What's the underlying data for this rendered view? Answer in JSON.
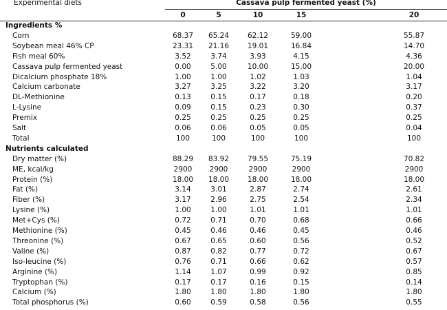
{
  "header": {
    "label": "Experimental diets",
    "group": "Cassava pulp fermented yeast (%)",
    "levels": [
      "0",
      "5",
      "10",
      "15",
      "20"
    ]
  },
  "sections": [
    {
      "title": "Ingredients %",
      "rows": [
        {
          "label": "Corn",
          "values": [
            "68.37",
            "65.24",
            "62.12",
            "59.00",
            "55.87"
          ]
        },
        {
          "label": "Soybean meal 46% CP",
          "values": [
            "23.31",
            "21.16",
            "19.01",
            "16.84",
            "14.70"
          ]
        },
        {
          "label": "Fish meal 60%",
          "values": [
            "3.52",
            "3.74",
            "3.93",
            "4.15",
            "4.36"
          ]
        },
        {
          "label": "Cassava pulp fermented yeast",
          "values": [
            "0.00",
            "5.00",
            "10.00",
            "15.00",
            "20.00"
          ]
        },
        {
          "label": "Dicalcium phosphate 18%",
          "values": [
            "1.00",
            "1.00",
            "1.02",
            "1.03",
            "1.04"
          ]
        },
        {
          "label": "Calcium carbonate",
          "values": [
            "3.27",
            "3.25",
            "3.22",
            "3.20",
            "3.17"
          ]
        },
        {
          "label": "DL-Methionine",
          "values": [
            "0.13",
            "0.15",
            "0.17",
            "0.18",
            "0.20"
          ]
        },
        {
          "label": "L-Lysine",
          "values": [
            "0.09",
            "0.15",
            "0.23",
            "0.30",
            "0.37"
          ]
        },
        {
          "label": "Premix",
          "values": [
            "0.25",
            "0.25",
            "0.25",
            "0.25",
            "0.25"
          ]
        },
        {
          "label": "Salt",
          "values": [
            "0.06",
            "0.06",
            "0.05",
            "0.05",
            "0.04"
          ]
        },
        {
          "label": "Total",
          "values": [
            "100",
            "100",
            "100",
            "100",
            "100"
          ]
        }
      ]
    },
    {
      "title": "Nutrients calculated",
      "rows": [
        {
          "label": "Dry matter (%)",
          "values": [
            "88.29",
            "83.92",
            "79.55",
            "75.19",
            "70.82"
          ]
        },
        {
          "label": "ME, kcal/kg",
          "values": [
            "2900",
            "2900",
            "2900",
            "2900",
            "2900"
          ]
        },
        {
          "label": "Protein (%)",
          "values": [
            "18.00",
            "18.00",
            "18.00",
            "18.00",
            "18.00"
          ]
        },
        {
          "label": "Fat (%)",
          "values": [
            "3.14",
            "3.01",
            "2.87",
            "2.74",
            "2.61"
          ]
        },
        {
          "label": "Fiber (%)",
          "values": [
            "3.17",
            "2.96",
            "2.75",
            "2.54",
            "2.34"
          ]
        },
        {
          "label": "Lysine (%)",
          "values": [
            "1.00",
            "1.00",
            "1.01",
            "1.01",
            "1.01"
          ]
        },
        {
          "label": "Met+Cys (%)",
          "values": [
            "0.72",
            "0.71",
            "0.70",
            "0.68",
            "0.66"
          ]
        },
        {
          "label": "Methionine (%)",
          "values": [
            "0.45",
            "0.46",
            "0.46",
            "0.45",
            "0.46"
          ]
        },
        {
          "label": "Threonine (%)",
          "values": [
            "0.67",
            "0.65",
            "0.60",
            "0.56",
            "0.52"
          ]
        },
        {
          "label": "Valine (%)",
          "values": [
            "0.87",
            "0.82",
            "0.77",
            "0.72",
            "0.67"
          ]
        },
        {
          "label": "Iso-leucine (%)",
          "values": [
            "0.76",
            "0.71",
            "0.66",
            "0.62",
            "0.57"
          ]
        },
        {
          "label": "Arginine (%)",
          "values": [
            "1.14",
            "1.07",
            "0.99",
            "0.92",
            "0.85"
          ]
        },
        {
          "label": "Tryptophan (%)",
          "values": [
            "0.17",
            "0.17",
            "0.16",
            "0.15",
            "0.14"
          ]
        },
        {
          "label": "Calcium (%)",
          "values": [
            "1.80",
            "1.80",
            "1.80",
            "1.80",
            "1.80"
          ]
        },
        {
          "label": "Total phosphorus (%)",
          "values": [
            "0.60",
            "0.59",
            "0.58",
            "0.56",
            "0.55"
          ]
        }
      ]
    }
  ]
}
